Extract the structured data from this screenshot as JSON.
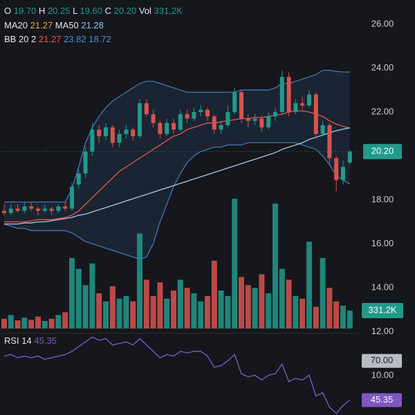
{
  "chart_data": {
    "type": "candlestick",
    "up_color": "#22998b",
    "down_color": "#d9534f",
    "open": [
      17.5,
      17.4,
      17.6,
      17.5,
      17.7,
      17.6,
      17.5,
      17.6,
      17.5,
      17.7,
      17.6,
      18.7,
      19.2,
      20.2,
      21.2,
      20.9,
      21.3,
      20.6,
      21.0,
      21.2,
      20.9,
      22.4,
      21.9,
      21.5,
      21.0,
      21.5,
      21.2,
      21.9,
      21.7,
      22.0,
      22.1,
      21.8,
      21.2,
      21.4,
      22.0,
      22.9,
      21.7,
      21.6,
      21.7,
      21.3,
      21.8,
      22.0,
      23.6,
      22.0,
      22.4,
      22.3,
      22.8,
      21.0,
      21.4,
      19.9,
      18.9,
      19.7
    ],
    "high": [
      17.8,
      17.8,
      17.8,
      17.9,
      17.9,
      17.7,
      17.8,
      17.7,
      17.8,
      17.9,
      18.8,
      19.4,
      20.4,
      21.5,
      21.4,
      21.5,
      21.4,
      21.2,
      21.4,
      21.3,
      22.6,
      22.6,
      22.1,
      21.6,
      21.7,
      21.7,
      22.1,
      22.1,
      22.2,
      22.3,
      22.2,
      21.9,
      21.6,
      22.3,
      23.1,
      23.0,
      21.9,
      21.9,
      21.8,
      22.0,
      22.2,
      23.9,
      23.8,
      22.6,
      22.7,
      23.0,
      22.9,
      21.6,
      21.5,
      20.0,
      19.8,
      20.25
    ],
    "low": [
      17.3,
      17.3,
      17.4,
      17.4,
      17.5,
      17.3,
      17.4,
      17.3,
      17.4,
      17.5,
      17.5,
      18.5,
      19.0,
      20.0,
      20.6,
      20.7,
      20.4,
      20.4,
      20.8,
      20.7,
      20.8,
      21.8,
      21.3,
      20.8,
      20.9,
      21.0,
      21.1,
      21.5,
      21.6,
      21.8,
      21.6,
      21.0,
      21.0,
      21.3,
      21.9,
      21.5,
      21.3,
      21.4,
      21.1,
      21.2,
      21.6,
      21.9,
      21.8,
      21.9,
      22.1,
      22.2,
      20.8,
      20.9,
      19.6,
      18.4,
      18.7,
      19.6
    ],
    "close": [
      17.4,
      17.6,
      17.5,
      17.7,
      17.6,
      17.5,
      17.6,
      17.5,
      17.7,
      17.6,
      18.6,
      19.2,
      20.2,
      21.2,
      20.9,
      21.3,
      20.6,
      21.0,
      21.2,
      20.9,
      22.4,
      21.9,
      21.5,
      21.0,
      21.5,
      21.2,
      21.9,
      21.7,
      22.0,
      22.1,
      21.8,
      21.2,
      21.4,
      22.0,
      22.9,
      21.7,
      21.6,
      21.7,
      21.3,
      21.8,
      22.0,
      23.6,
      22.0,
      22.4,
      22.3,
      22.8,
      21.0,
      21.4,
      19.9,
      18.9,
      19.5,
      20.2
    ],
    "ylim": [
      10,
      27.1
    ],
    "yticks": [
      {
        "value": 26,
        "label": "26.00"
      },
      {
        "value": 24,
        "label": "24.00"
      },
      {
        "value": 22,
        "label": "22.00"
      },
      {
        "value": 18,
        "label": "18.00"
      },
      {
        "value": 16,
        "label": "16.00"
      },
      {
        "value": 14,
        "label": "14.00"
      },
      {
        "value": 12,
        "label": "12.00"
      },
      {
        "value": 10,
        "label": "10.00"
      }
    ],
    "last_price": {
      "value": 20.2,
      "label": "20.20"
    },
    "header": [
      {
        "label": "O",
        "value": "19.70"
      },
      {
        "label": "H",
        "value": "20.25"
      },
      {
        "label": "L",
        "value": "19.60"
      },
      {
        "label": "C",
        "value": "20.20"
      },
      {
        "label": "Vol",
        "value": "331,2K"
      }
    ],
    "series": [
      {
        "name": "MA20",
        "color": "#e8564f",
        "label_color": "#f0a33a",
        "value_label": "21.27",
        "values": [
          17.0,
          17.0,
          17.0,
          17.0,
          17.05,
          17.1,
          17.1,
          17.1,
          17.15,
          17.2,
          17.3,
          17.5,
          17.8,
          18.1,
          18.4,
          18.7,
          19.0,
          19.3,
          19.5,
          19.7,
          19.9,
          20.1,
          20.3,
          20.5,
          20.7,
          20.9,
          21.0,
          21.2,
          21.3,
          21.4,
          21.5,
          21.5,
          21.55,
          21.6,
          21.65,
          21.7,
          21.7,
          21.75,
          21.75,
          21.8,
          21.85,
          21.9,
          22.0,
          22.05,
          22.05,
          22.0,
          21.9,
          21.8,
          21.6,
          21.45,
          21.35,
          21.27
        ]
      },
      {
        "name": "MA50",
        "color": "#a9cbe8",
        "label_color": "#8fc3ee",
        "value_label": "21.28",
        "values": [
          16.9,
          16.9,
          16.9,
          16.95,
          16.95,
          17.0,
          17.0,
          17.05,
          17.1,
          17.15,
          17.2,
          17.3,
          17.35,
          17.45,
          17.55,
          17.65,
          17.75,
          17.85,
          17.95,
          18.05,
          18.15,
          18.25,
          18.35,
          18.45,
          18.55,
          18.65,
          18.75,
          18.85,
          18.95,
          19.05,
          19.15,
          19.25,
          19.35,
          19.45,
          19.55,
          19.65,
          19.75,
          19.85,
          19.95,
          20.05,
          20.15,
          20.3,
          20.4,
          20.5,
          20.6,
          20.75,
          20.85,
          20.95,
          21.05,
          21.15,
          21.22,
          21.28
        ]
      }
    ],
    "bollinger": {
      "name": "BB 20 2",
      "color": "#3f78b5",
      "middle_label": "21.27",
      "upper_label": "23.82",
      "lower_label": "18.72",
      "upper": [
        17.9,
        17.9,
        17.9,
        17.9,
        17.9,
        17.9,
        17.9,
        17.9,
        17.9,
        17.9,
        18.5,
        19.5,
        20.6,
        21.3,
        21.8,
        22.2,
        22.5,
        22.7,
        22.9,
        23.1,
        23.3,
        23.4,
        23.4,
        23.3,
        23.2,
        23.1,
        23.0,
        22.9,
        22.9,
        22.9,
        22.9,
        22.9,
        22.9,
        22.9,
        22.9,
        23.0,
        23.0,
        23.0,
        23.0,
        23.0,
        23.1,
        23.3,
        23.3,
        23.4,
        23.5,
        23.6,
        23.7,
        23.9,
        23.9,
        23.85,
        23.82,
        23.82
      ],
      "lower": [
        16.9,
        16.8,
        16.7,
        16.7,
        16.6,
        16.6,
        16.6,
        16.6,
        16.6,
        16.6,
        16.5,
        16.3,
        16.1,
        16.0,
        15.9,
        15.8,
        15.7,
        15.6,
        15.5,
        15.4,
        15.3,
        15.4,
        16.0,
        17.0,
        17.8,
        18.6,
        19.2,
        19.7,
        20.0,
        20.2,
        20.3,
        20.4,
        20.4,
        20.5,
        20.5,
        20.5,
        20.6,
        20.6,
        20.6,
        20.6,
        20.6,
        20.6,
        20.6,
        20.6,
        20.5,
        20.4,
        20.3,
        20.0,
        19.6,
        19.1,
        18.9,
        18.72
      ]
    },
    "volume": {
      "ylim": [
        0,
        6050000
      ],
      "last_label": "331.2K",
      "values": [
        180000,
        250000,
        150000,
        200000,
        160000,
        220000,
        140000,
        180000,
        250000,
        300000,
        1300000,
        1100000,
        800000,
        1200000,
        650000,
        500000,
        780000,
        550000,
        600000,
        500000,
        1750000,
        900000,
        600000,
        850000,
        550000,
        700000,
        900000,
        750000,
        650000,
        500000,
        600000,
        1250000,
        700000,
        600000,
        2390000,
        950000,
        800000,
        750000,
        1000000,
        650000,
        2300000,
        1100000,
        900000,
        600000,
        550000,
        1600000,
        400000,
        1300000,
        750000,
        500000,
        420000,
        331200
      ]
    },
    "rsi": {
      "name": "RSI 14",
      "color": "#7e57c2",
      "value_label": "45.35",
      "ylim": [
        36,
        86
      ],
      "ticks": [
        {
          "value": 70,
          "label": "70.00"
        }
      ],
      "values": [
        73,
        74,
        72,
        73,
        72,
        73,
        71,
        72,
        73,
        74,
        76,
        79,
        82,
        85,
        83,
        84,
        80,
        81,
        82,
        80,
        84,
        80,
        76,
        72,
        74,
        73,
        76,
        75,
        76,
        76,
        73,
        66,
        67,
        70,
        74,
        62,
        60,
        61,
        58,
        61,
        62,
        68,
        57,
        59,
        58,
        61,
        48,
        50,
        41,
        37,
        42,
        45.35
      ]
    }
  }
}
